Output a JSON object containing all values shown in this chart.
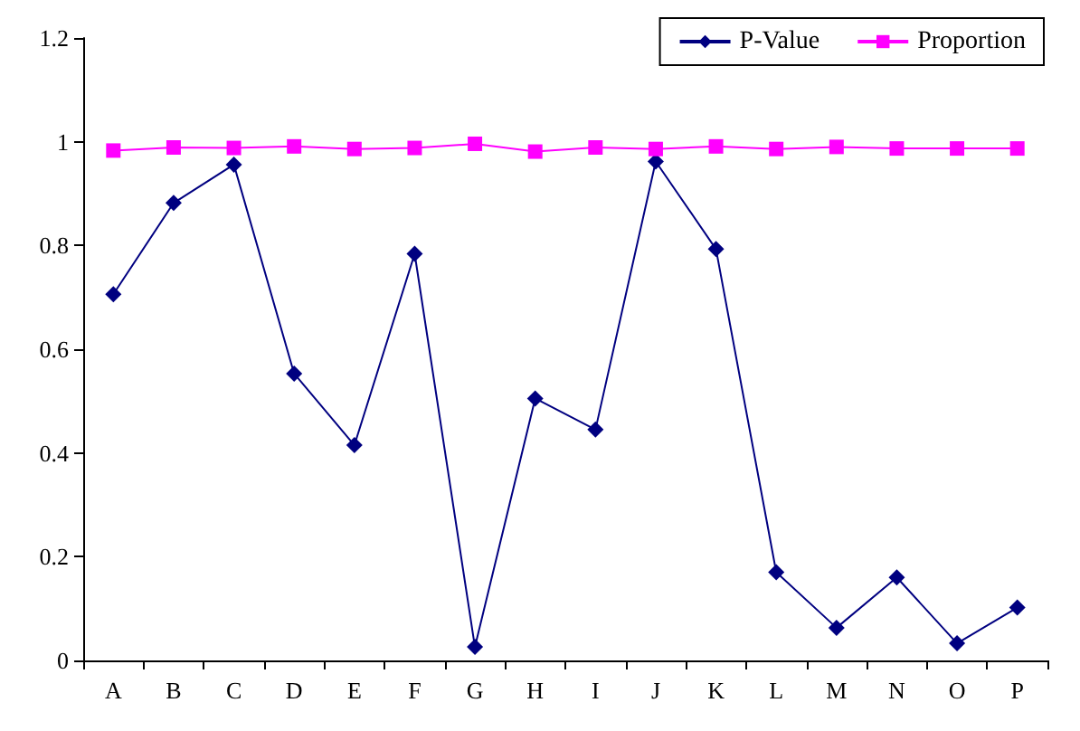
{
  "chart_data": {
    "type": "line",
    "categories": [
      "A",
      "B",
      "C",
      "D",
      "E",
      "F",
      "G",
      "H",
      "I",
      "J",
      "K",
      "L",
      "M",
      "N",
      "O",
      "P"
    ],
    "series": [
      {
        "name": "P-Value",
        "color": "#000080",
        "marker": "diamond",
        "values": [
          0.706,
          0.882,
          0.956,
          0.553,
          0.415,
          0.784,
          0.026,
          0.505,
          0.445,
          0.962,
          0.793,
          0.17,
          0.063,
          0.16,
          0.033,
          0.102
        ]
      },
      {
        "name": "Proportion",
        "color": "#ff00ff",
        "marker": "square",
        "values": [
          0.983,
          0.989,
          0.988,
          0.991,
          0.986,
          0.988,
          0.996,
          0.981,
          0.989,
          0.986,
          0.991,
          0.986,
          0.99,
          0.987,
          0.987,
          0.987
        ]
      }
    ],
    "ylim": [
      0,
      1.2
    ],
    "yticks": [
      0,
      0.2,
      0.4,
      0.6,
      0.8,
      1,
      1.2
    ],
    "grid": false,
    "legend": "top right",
    "line_style": "solid"
  }
}
